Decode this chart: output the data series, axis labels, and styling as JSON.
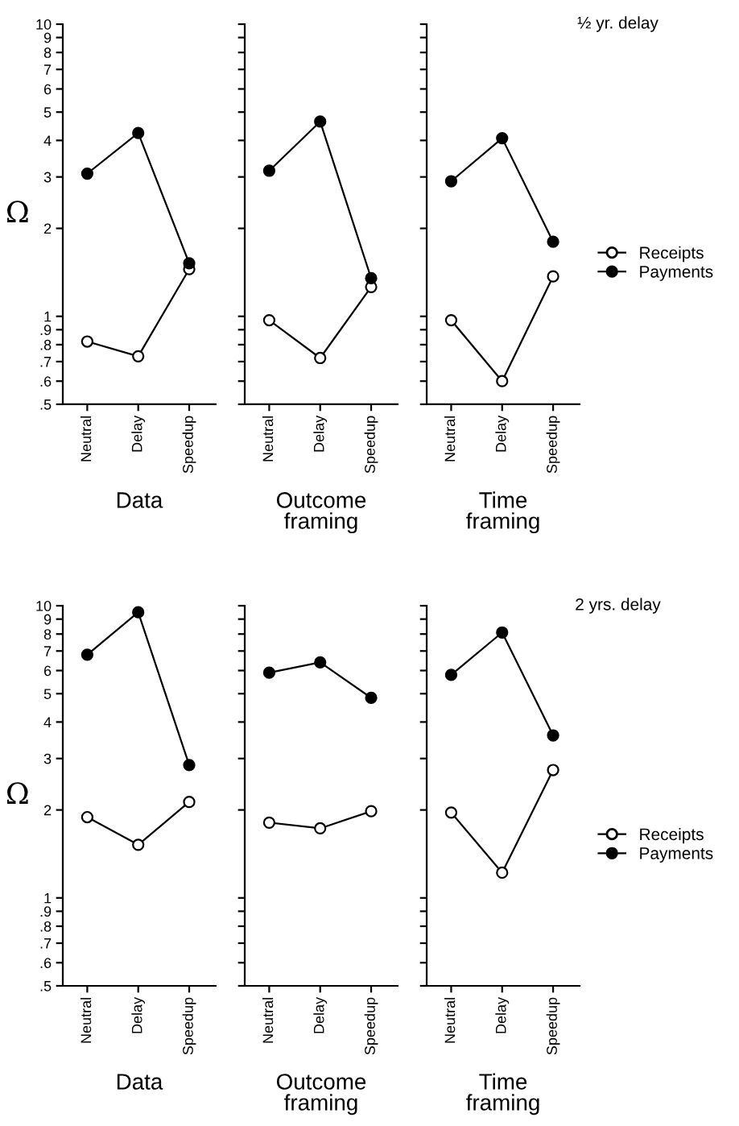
{
  "chart_data": [
    {
      "type": "line",
      "xlabel": "Data",
      "ylabel": "Ω",
      "categories": [
        "Neutral",
        "Delay",
        "Speedup"
      ],
      "log": true,
      "marker": "circle",
      "ylim": [
        0.5,
        10
      ],
      "yticks": [
        {
          "value": 0.5,
          "label": ".5"
        },
        {
          "value": 0.6,
          "label": ".6"
        },
        {
          "value": 0.7,
          "label": ".7"
        },
        {
          "value": 0.8,
          "label": ".8"
        },
        {
          "value": 0.9,
          "label": ".9"
        },
        1,
        2,
        3,
        4,
        5,
        6,
        7,
        8,
        9,
        10
      ],
      "series": [
        {
          "color": "#ffffff",
          "values": [
            0.82,
            0.73,
            1.45
          ]
        },
        {
          "color": "#000000",
          "values": [
            3.08,
            4.24,
            1.52
          ]
        }
      ]
    },
    {
      "type": "line",
      "xlabel": "Outcome\nframing",
      "categories": [
        "Neutral",
        "Delay",
        "Speedup"
      ],
      "log": true,
      "marker": "circle",
      "tick_labels": "x",
      "ylim": [
        0.5,
        10
      ],
      "yticks": [
        {
          "value": 0.5,
          "label": null
        },
        {
          "value": 0.6,
          "label": null
        },
        {
          "value": 0.7,
          "label": null
        },
        {
          "value": 0.8,
          "label": null
        },
        {
          "value": 0.9,
          "label": null
        },
        {
          "value": 1,
          "label": null
        },
        {
          "value": 2,
          "label": null
        },
        {
          "value": 3,
          "label": null
        },
        {
          "value": 4,
          "label": null
        },
        {
          "value": 5,
          "label": null
        },
        {
          "value": 6,
          "label": null
        },
        {
          "value": 7,
          "label": null
        },
        {
          "value": 8,
          "label": null
        },
        {
          "value": 9,
          "label": null
        },
        {
          "value": 10,
          "label": null
        }
      ],
      "series": [
        {
          "color": "#ffffff",
          "values": [
            0.97,
            0.72,
            1.26
          ]
        },
        {
          "color": "#000000",
          "values": [
            3.15,
            4.64,
            1.35
          ]
        }
      ]
    },
    {
      "type": "line",
      "xlabel": "Time\nframing",
      "categories": [
        "Neutral",
        "Delay",
        "Speedup"
      ],
      "log": true,
      "marker": "circle",
      "tick_labels": "x",
      "legend": "right",
      "annotations": [
        "½ yr. delay"
      ],
      "ylim": [
        0.5,
        10
      ],
      "yticks": [
        {
          "value": 0.5,
          "label": null
        },
        {
          "value": 0.6,
          "label": null
        },
        {
          "value": 0.7,
          "label": null
        },
        {
          "value": 0.8,
          "label": null
        },
        {
          "value": 0.9,
          "label": null
        },
        {
          "value": 1,
          "label": null
        },
        {
          "value": 2,
          "label": null
        },
        {
          "value": 3,
          "label": null
        },
        {
          "value": 4,
          "label": null
        },
        {
          "value": 5,
          "label": null
        },
        {
          "value": 6,
          "label": null
        },
        {
          "value": 7,
          "label": null
        },
        {
          "value": 8,
          "label": null
        },
        {
          "value": 9,
          "label": null
        },
        {
          "value": 10,
          "label": null
        }
      ],
      "series": [
        {
          "name": "Receipts",
          "color": "#ffffff",
          "values": [
            0.97,
            0.6,
            1.37
          ]
        },
        {
          "name": "Payments",
          "color": "#000000",
          "values": [
            2.9,
            4.07,
            1.8
          ]
        }
      ]
    },
    {
      "type": "line",
      "xlabel": "Data",
      "ylabel": "Ω",
      "categories": [
        "Neutral",
        "Delay",
        "Speedup"
      ],
      "log": true,
      "marker": "circle",
      "ylim": [
        0.5,
        10
      ],
      "yticks": [
        {
          "value": 0.5,
          "label": ".5"
        },
        {
          "value": 0.6,
          "label": ".6"
        },
        {
          "value": 0.7,
          "label": ".7"
        },
        {
          "value": 0.8,
          "label": ".8"
        },
        {
          "value": 0.9,
          "label": ".9"
        },
        1,
        2,
        3,
        4,
        5,
        6,
        7,
        8,
        9,
        10
      ],
      "series": [
        {
          "color": "#ffffff",
          "values": [
            1.89,
            1.52,
            2.13
          ]
        },
        {
          "color": "#000000",
          "values": [
            6.8,
            9.5,
            2.85
          ]
        }
      ]
    },
    {
      "type": "line",
      "xlabel": "Outcome\nframing",
      "categories": [
        "Neutral",
        "Delay",
        "Speedup"
      ],
      "log": true,
      "marker": "circle",
      "tick_labels": "x",
      "ylim": [
        0.5,
        10
      ],
      "yticks": [
        {
          "value": 0.5,
          "label": null
        },
        {
          "value": 0.6,
          "label": null
        },
        {
          "value": 0.7,
          "label": null
        },
        {
          "value": 0.8,
          "label": null
        },
        {
          "value": 0.9,
          "label": null
        },
        {
          "value": 1,
          "label": null
        },
        {
          "value": 2,
          "label": null
        },
        {
          "value": 3,
          "label": null
        },
        {
          "value": 4,
          "label": null
        },
        {
          "value": 5,
          "label": null
        },
        {
          "value": 6,
          "label": null
        },
        {
          "value": 7,
          "label": null
        },
        {
          "value": 8,
          "label": null
        },
        {
          "value": 9,
          "label": null
        },
        {
          "value": 10,
          "label": null
        }
      ],
      "series": [
        {
          "color": "#ffffff",
          "values": [
            1.81,
            1.73,
            1.98
          ]
        },
        {
          "color": "#000000",
          "values": [
            5.9,
            6.4,
            4.84
          ]
        }
      ]
    },
    {
      "type": "line",
      "xlabel": "Time\nframing",
      "categories": [
        "Neutral",
        "Delay",
        "Speedup"
      ],
      "log": true,
      "marker": "circle",
      "tick_labels": "x",
      "legend": "right",
      "annotations": [
        "2 yrs. delay"
      ],
      "ylim": [
        0.5,
        10
      ],
      "yticks": [
        {
          "value": 0.5,
          "label": null
        },
        {
          "value": 0.6,
          "label": null
        },
        {
          "value": 0.7,
          "label": null
        },
        {
          "value": 0.8,
          "label": null
        },
        {
          "value": 0.9,
          "label": null
        },
        {
          "value": 1,
          "label": null
        },
        {
          "value": 2,
          "label": null
        },
        {
          "value": 3,
          "label": null
        },
        {
          "value": 4,
          "label": null
        },
        {
          "value": 5,
          "label": null
        },
        {
          "value": 6,
          "label": null
        },
        {
          "value": 7,
          "label": null
        },
        {
          "value": 8,
          "label": null
        },
        {
          "value": 9,
          "label": null
        },
        {
          "value": 10,
          "label": null
        }
      ],
      "series": [
        {
          "name": "Receipts",
          "color": "#ffffff",
          "values": [
            1.96,
            1.22,
            2.74
          ]
        },
        {
          "name": "Payments",
          "color": "#000000",
          "values": [
            5.8,
            8.1,
            3.6
          ]
        }
      ]
    }
  ]
}
